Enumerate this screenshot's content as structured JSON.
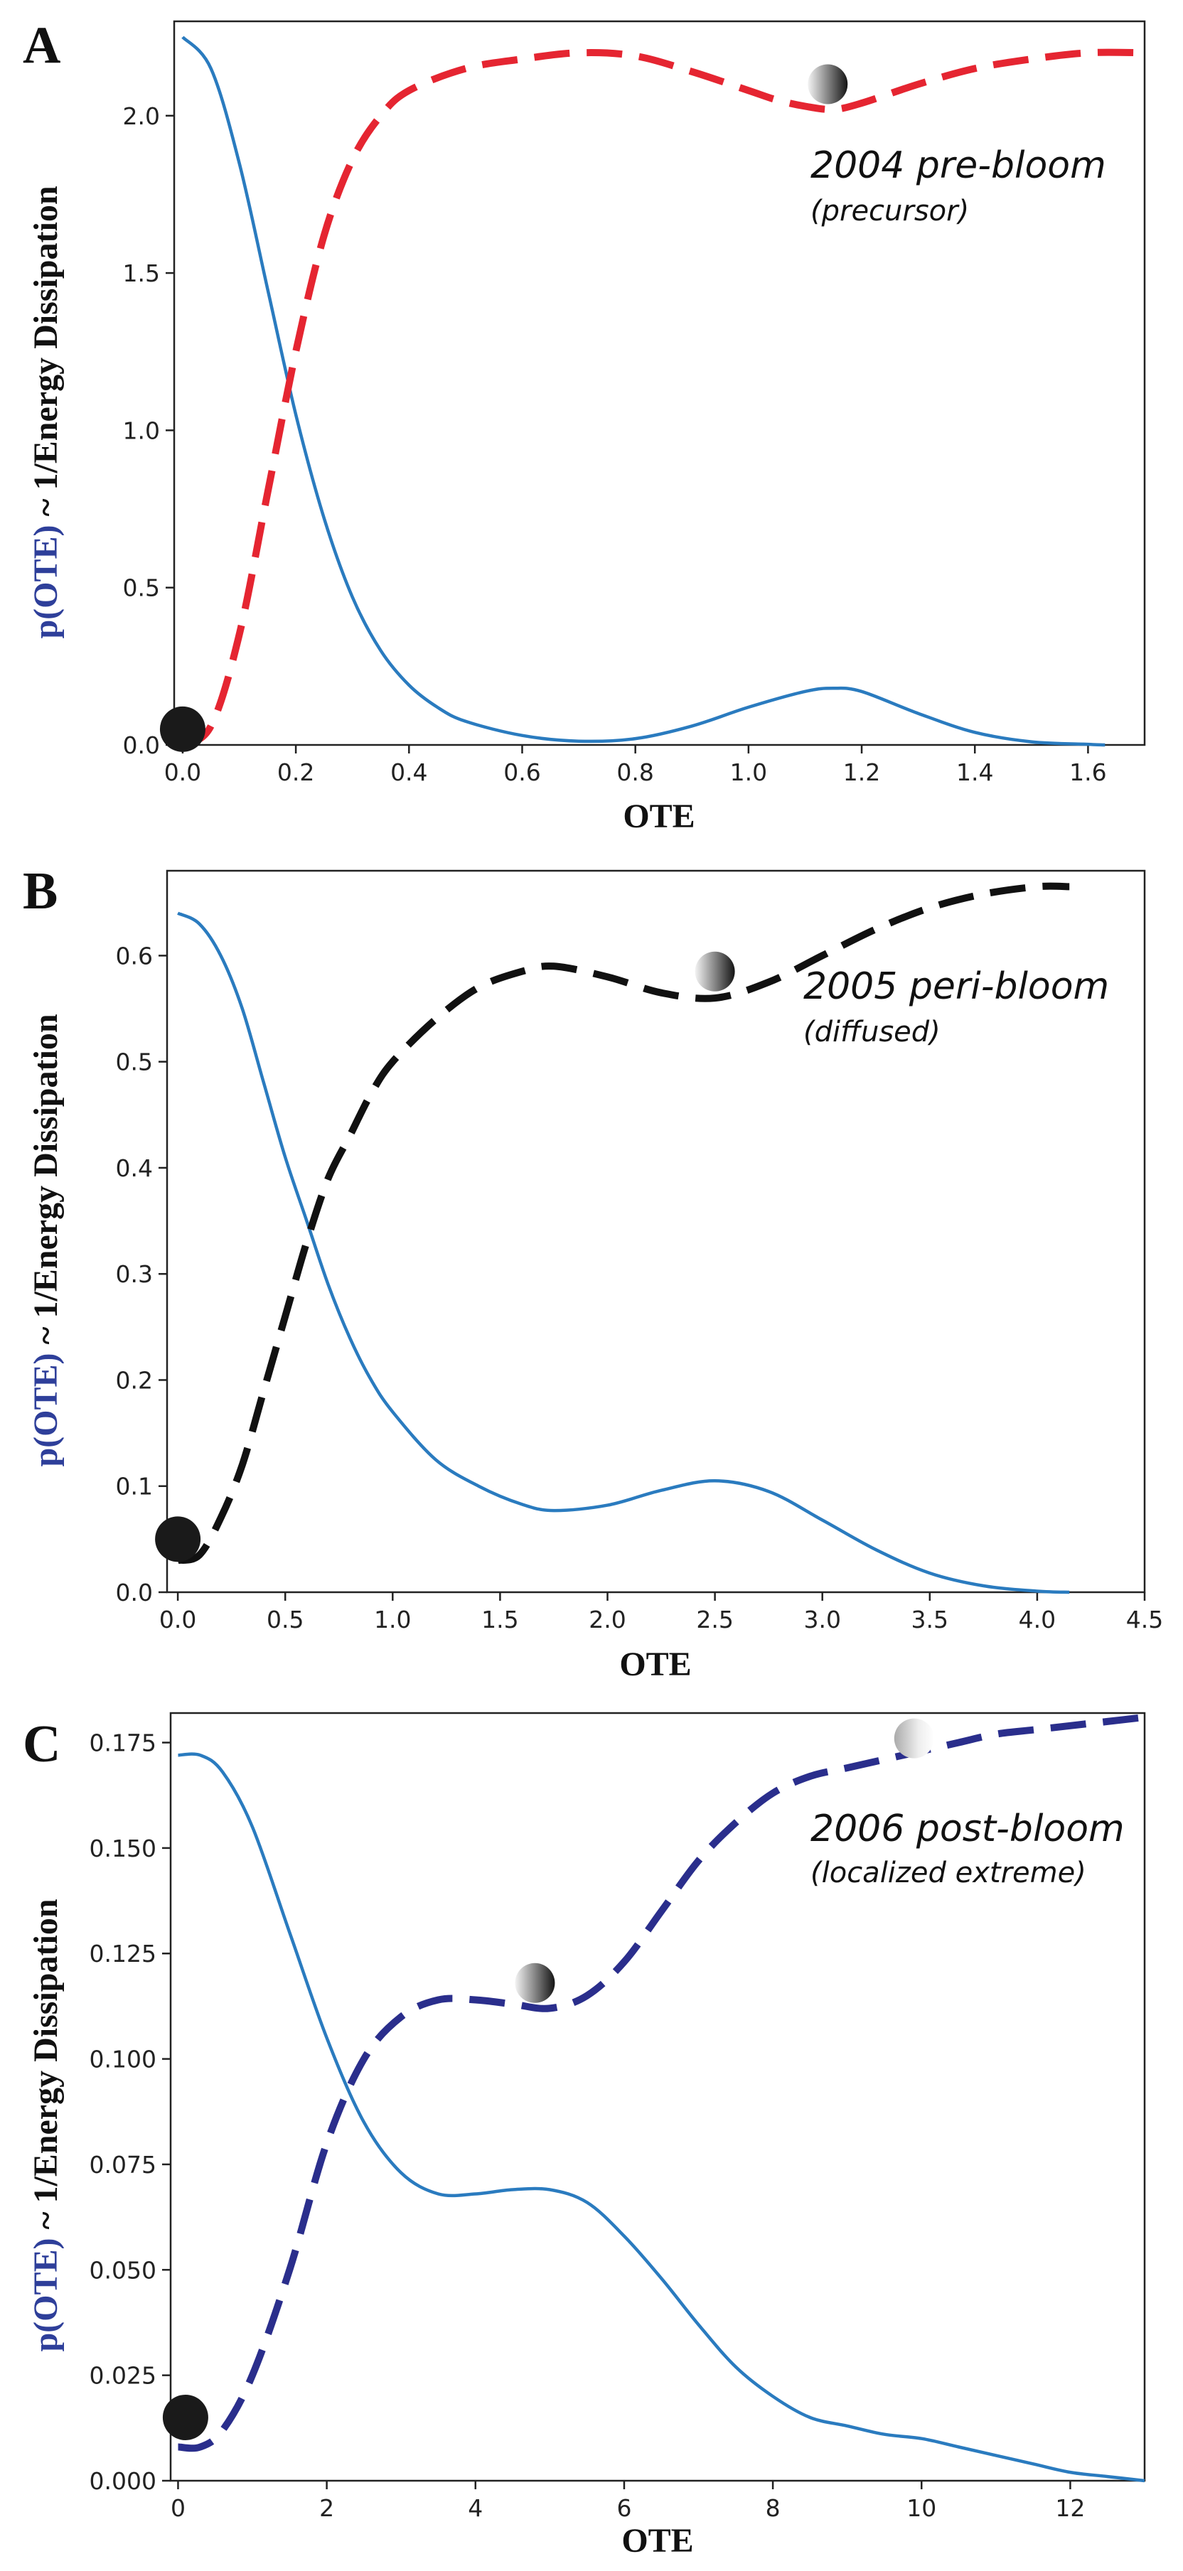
{
  "colors": {
    "solid": "#2a7bbf",
    "axis": "#222222",
    "ylabel_blue": "#2e3f9a"
  },
  "chart_data": [
    {
      "type": "line",
      "letter": "A",
      "annotation_title": "2004 pre-bloom",
      "annotation_sub": "(precursor)",
      "xlabel": "OTE",
      "ylabel_colored": "p(OTE)",
      "ylabel_rest": " ~ 1/Energy Dissipation",
      "xlim": [
        -0.015,
        1.7
      ],
      "ylim": [
        0,
        2.3
      ],
      "xticks": [
        0.0,
        0.2,
        0.4,
        0.6,
        0.8,
        1.0,
        1.2,
        1.4,
        1.6
      ],
      "xtick_labels": [
        "0.0",
        "0.2",
        "0.4",
        "0.6",
        "0.8",
        "1.0",
        "1.2",
        "1.4",
        "1.6"
      ],
      "yticks": [
        0.0,
        0.5,
        1.0,
        1.5,
        2.0
      ],
      "ytick_labels": [
        "0.0",
        "0.5",
        "1.0",
        "1.5",
        "2.0"
      ],
      "dashed_color": "#e52531",
      "series": [
        {
          "style": "solid",
          "x": [
            0.0,
            0.05,
            0.1,
            0.15,
            0.2,
            0.25,
            0.3,
            0.35,
            0.4,
            0.45,
            0.5,
            0.6,
            0.7,
            0.8,
            0.9,
            1.0,
            1.1,
            1.15,
            1.2,
            1.3,
            1.4,
            1.5,
            1.6,
            1.63
          ],
          "y": [
            2.25,
            2.15,
            1.85,
            1.45,
            1.05,
            0.72,
            0.47,
            0.3,
            0.19,
            0.12,
            0.075,
            0.03,
            0.012,
            0.02,
            0.06,
            0.12,
            0.17,
            0.18,
            0.17,
            0.1,
            0.04,
            0.01,
            0.002,
            0.0
          ]
        },
        {
          "style": "dashed",
          "x": [
            0.0,
            0.05,
            0.1,
            0.15,
            0.2,
            0.25,
            0.3,
            0.35,
            0.4,
            0.5,
            0.6,
            0.7,
            0.8,
            0.9,
            1.0,
            1.05,
            1.1,
            1.15,
            1.2,
            1.3,
            1.4,
            1.5,
            1.6,
            1.7
          ],
          "y": [
            0.0,
            0.06,
            0.35,
            0.8,
            1.25,
            1.62,
            1.86,
            2.0,
            2.08,
            2.15,
            2.18,
            2.2,
            2.19,
            2.14,
            2.08,
            2.05,
            2.03,
            2.02,
            2.04,
            2.1,
            2.15,
            2.18,
            2.2,
            2.2
          ]
        }
      ],
      "markers": [
        {
          "kind": "dark",
          "x": 0.0,
          "y": 0.05
        },
        {
          "kind": "shaded",
          "x": 1.14,
          "y": 2.1
        }
      ]
    },
    {
      "type": "line",
      "letter": "B",
      "annotation_title": "2005 peri-bloom",
      "annotation_sub": "(diffused)",
      "xlabel": "OTE",
      "ylabel_colored": "p(OTE)",
      "ylabel_rest": " ~ 1/Energy Dissipation",
      "xlim": [
        -0.05,
        4.5
      ],
      "ylim": [
        0,
        0.68
      ],
      "xticks": [
        0.0,
        0.5,
        1.0,
        1.5,
        2.0,
        2.5,
        3.0,
        3.5,
        4.0,
        4.5
      ],
      "xtick_labels": [
        "0.0",
        "0.5",
        "1.0",
        "1.5",
        "2.0",
        "2.5",
        "3.0",
        "3.5",
        "4.0",
        "4.5"
      ],
      "yticks": [
        0.0,
        0.1,
        0.2,
        0.3,
        0.4,
        0.5,
        0.6
      ],
      "ytick_labels": [
        "0.0",
        "0.1",
        "0.2",
        "0.3",
        "0.4",
        "0.5",
        "0.6"
      ],
      "dashed_color": "#111111",
      "series": [
        {
          "style": "solid",
          "x": [
            0.0,
            0.1,
            0.2,
            0.3,
            0.4,
            0.5,
            0.6,
            0.7,
            0.8,
            0.9,
            1.0,
            1.2,
            1.4,
            1.6,
            1.75,
            2.0,
            2.25,
            2.5,
            2.75,
            3.0,
            3.25,
            3.5,
            3.75,
            4.0,
            4.15
          ],
          "y": [
            0.64,
            0.63,
            0.6,
            0.55,
            0.48,
            0.41,
            0.35,
            0.29,
            0.24,
            0.2,
            0.17,
            0.125,
            0.1,
            0.083,
            0.077,
            0.082,
            0.096,
            0.105,
            0.095,
            0.068,
            0.04,
            0.018,
            0.006,
            0.001,
            0.0
          ]
        },
        {
          "style": "dashed",
          "x": [
            0.0,
            0.1,
            0.2,
            0.3,
            0.4,
            0.5,
            0.6,
            0.7,
            0.8,
            0.9,
            1.0,
            1.2,
            1.4,
            1.6,
            1.75,
            2.0,
            2.25,
            2.5,
            2.75,
            3.0,
            3.25,
            3.5,
            3.75,
            4.0,
            4.15
          ],
          "y": [
            0.03,
            0.035,
            0.07,
            0.12,
            0.19,
            0.26,
            0.33,
            0.39,
            0.43,
            0.47,
            0.5,
            0.54,
            0.57,
            0.585,
            0.59,
            0.58,
            0.565,
            0.56,
            0.575,
            0.6,
            0.625,
            0.645,
            0.658,
            0.665,
            0.665
          ]
        }
      ],
      "markers": [
        {
          "kind": "dark",
          "x": 0.0,
          "y": 0.05
        },
        {
          "kind": "shaded",
          "x": 2.5,
          "y": 0.585
        }
      ]
    },
    {
      "type": "line",
      "letter": "C",
      "annotation_title": "2006 post-bloom",
      "annotation_sub": "(localized extreme)",
      "xlabel": "OTE",
      "ylabel_colored": "p(OTE)",
      "ylabel_rest": " ~ 1/Energy Dissipation",
      "xlim": [
        -0.1,
        13
      ],
      "ylim": [
        0,
        0.182
      ],
      "xticks": [
        0,
        2,
        4,
        6,
        8,
        10,
        12
      ],
      "xtick_labels": [
        "0",
        "2",
        "4",
        "6",
        "8",
        "10",
        "12"
      ],
      "yticks": [
        0.0,
        0.025,
        0.05,
        0.075,
        0.1,
        0.125,
        0.15,
        0.175
      ],
      "ytick_labels": [
        "0.000",
        "0.025",
        "0.050",
        "0.075",
        "0.100",
        "0.125",
        "0.150",
        "0.175"
      ],
      "dashed_color": "#2a2e8c",
      "series": [
        {
          "style": "solid",
          "x": [
            0.0,
            0.3,
            0.6,
            1.0,
            1.5,
            2.0,
            2.5,
            3.0,
            3.5,
            4.0,
            4.5,
            5.0,
            5.5,
            6.0,
            6.5,
            7.0,
            7.5,
            8.0,
            8.5,
            9.0,
            9.5,
            10.0,
            10.5,
            11.0,
            11.5,
            12.0,
            12.5,
            13.0
          ],
          "y": [
            0.172,
            0.172,
            0.168,
            0.155,
            0.13,
            0.105,
            0.085,
            0.073,
            0.068,
            0.068,
            0.069,
            0.069,
            0.066,
            0.058,
            0.048,
            0.037,
            0.027,
            0.02,
            0.015,
            0.013,
            0.011,
            0.01,
            0.008,
            0.006,
            0.004,
            0.002,
            0.001,
            0.0
          ]
        },
        {
          "style": "dashed",
          "x": [
            0.0,
            0.3,
            0.6,
            1.0,
            1.5,
            2.0,
            2.5,
            3.0,
            3.5,
            4.0,
            4.5,
            5.0,
            5.5,
            6.0,
            6.5,
            7.0,
            7.5,
            8.0,
            8.5,
            9.0,
            9.5,
            10.0,
            10.5,
            11.0,
            11.5,
            12.0,
            12.5,
            13.0
          ],
          "y": [
            0.008,
            0.008,
            0.012,
            0.025,
            0.05,
            0.08,
            0.1,
            0.11,
            0.114,
            0.114,
            0.113,
            0.112,
            0.115,
            0.123,
            0.135,
            0.147,
            0.156,
            0.163,
            0.167,
            0.169,
            0.171,
            0.173,
            0.175,
            0.177,
            0.178,
            0.179,
            0.18,
            0.181
          ]
        }
      ],
      "markers": [
        {
          "kind": "dark",
          "x": 0.1,
          "y": 0.015
        },
        {
          "kind": "shaded",
          "x": 4.8,
          "y": 0.118
        },
        {
          "kind": "light",
          "x": 9.9,
          "y": 0.176
        }
      ]
    }
  ]
}
